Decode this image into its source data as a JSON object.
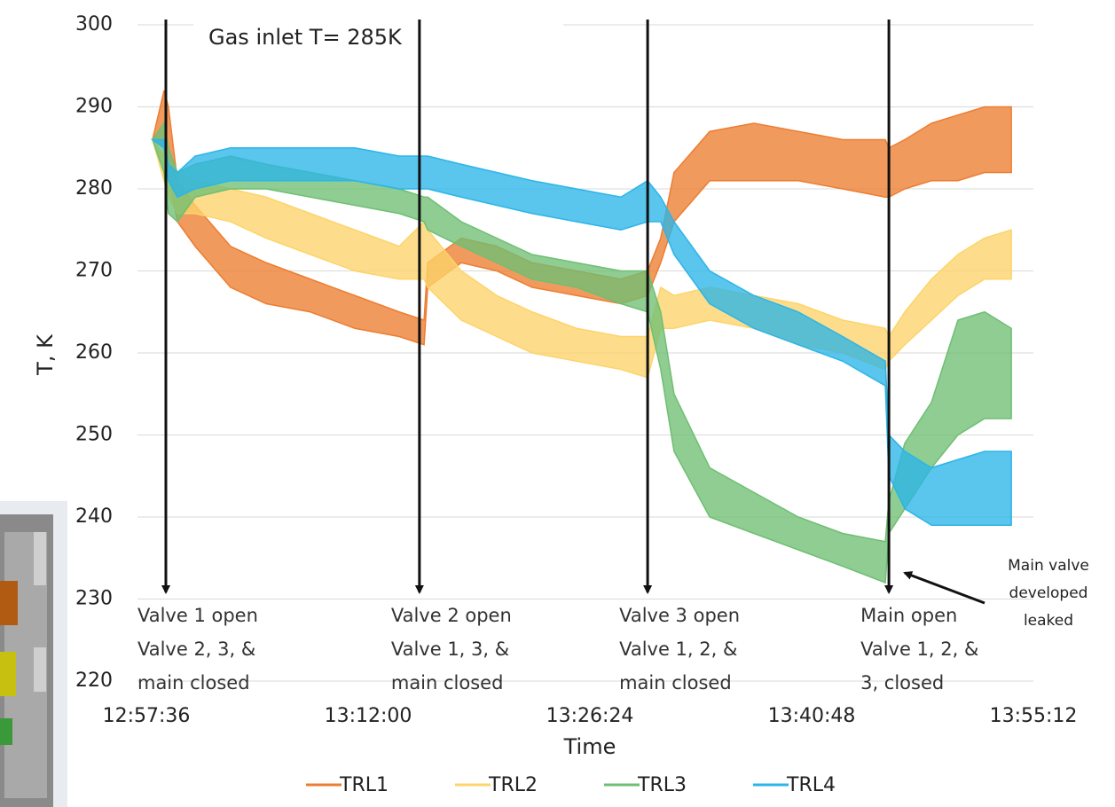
{
  "chart_data": {
    "type": "band",
    "inlet_note": "Gas inlet T= 285K",
    "y_label": "T, K",
    "x_label": "Time",
    "x": [
      "12:58:00",
      "12:58:45",
      "12:59:02",
      "12:59:37",
      "13:00:46",
      "13:03:04",
      "13:05:23",
      "13:08:15",
      "13:11:08",
      "13:14:01",
      "13:15:38",
      "13:15:52",
      "13:18:03",
      "13:20:21",
      "13:22:39",
      "13:25:32",
      "13:28:25",
      "13:30:09",
      "13:31:00",
      "13:31:52",
      "13:34:11",
      "13:37:03",
      "13:39:56",
      "13:42:49",
      "13:45:35",
      "13:45:49",
      "13:46:51",
      "13:48:35",
      "13:50:18",
      "13:52:02",
      "13:53:46"
    ],
    "series": [
      {
        "name": "TRL1",
        "color": "#ed7d31",
        "low": [
          286,
          285,
          282,
          276,
          273,
          268,
          266,
          265,
          263,
          262,
          261,
          268,
          271,
          270,
          268,
          267,
          266,
          267,
          271,
          276,
          281,
          281,
          281,
          280,
          279,
          279,
          280,
          281,
          281,
          282,
          282
        ],
        "high": [
          286,
          292,
          290,
          281,
          278,
          273,
          271,
          269,
          267,
          265,
          264,
          271,
          274,
          273,
          271,
          270,
          269,
          270,
          274,
          282,
          287,
          288,
          287,
          286,
          286,
          285,
          286,
          288,
          289,
          290,
          290
        ]
      },
      {
        "name": "TRL2",
        "color": "#fdd46a",
        "low": [
          286,
          281,
          279,
          277,
          277,
          276,
          274,
          272,
          270,
          269,
          269,
          268,
          264,
          262,
          260,
          259,
          258,
          257,
          263,
          263,
          264,
          263,
          261,
          260,
          258,
          259,
          261,
          264,
          267,
          269,
          269
        ],
        "high": [
          286,
          284,
          283,
          282,
          281,
          280,
          279,
          277,
          275,
          273,
          276,
          275,
          270,
          267,
          265,
          263,
          262,
          262,
          268,
          267,
          268,
          267,
          266,
          264,
          263,
          262,
          265,
          269,
          272,
          274,
          275
        ]
      },
      {
        "name": "TRL3",
        "color": "#6fbf73",
        "low": [
          286,
          282,
          277,
          276,
          279,
          280,
          280,
          279,
          278,
          277,
          276,
          275,
          273,
          271,
          269,
          268,
          266,
          265,
          258,
          248,
          240,
          238,
          236,
          234,
          232,
          238,
          241,
          246,
          250,
          252,
          252
        ],
        "high": [
          286,
          288,
          285,
          282,
          283,
          284,
          283,
          282,
          281,
          280,
          279,
          279,
          276,
          274,
          272,
          271,
          270,
          270,
          265,
          255,
          246,
          243,
          240,
          238,
          237,
          242,
          249,
          254,
          264,
          265,
          263
        ]
      },
      {
        "name": "TRL4",
        "color": "#2cb5e8",
        "low": [
          286,
          285,
          281,
          279,
          280,
          281,
          281,
          281,
          281,
          280,
          280,
          280,
          279,
          278,
          277,
          276,
          275,
          276,
          276,
          272,
          266,
          263,
          261,
          259,
          256,
          245,
          241,
          239,
          239,
          239,
          239
        ],
        "high": [
          286,
          286,
          283,
          282,
          284,
          285,
          285,
          285,
          285,
          284,
          284,
          284,
          283,
          282,
          281,
          280,
          279,
          281,
          279,
          276,
          270,
          267,
          265,
          262,
          259,
          250,
          248,
          246,
          247,
          248,
          248
        ]
      }
    ],
    "xlim": [
      "12:57:36",
      "13:55:12"
    ],
    "xticks": [
      "12:57:36",
      "13:12:00",
      "13:26:24",
      "13:40:48",
      "13:55:12"
    ],
    "ylim": [
      220,
      300
    ],
    "yticks": [
      220,
      230,
      240,
      250,
      260,
      270,
      280,
      290,
      300
    ],
    "grid": true,
    "legend": "bottom",
    "annotations": [
      {
        "x": "12:58:52",
        "lines": [
          "Valve 1 open",
          "Valve 2, 3, &",
          "main closed"
        ]
      },
      {
        "x": "13:15:20",
        "lines": [
          "Valve 2 open",
          "Valve 1, 3, &",
          "main closed"
        ]
      },
      {
        "x": "13:30:09",
        "lines": [
          "Valve 3 open",
          "Valve 1, 2, &",
          "main closed"
        ]
      },
      {
        "x": "13:45:49",
        "lines": [
          "Main open",
          "Valve 1, 2, &",
          "3, closed"
        ]
      }
    ],
    "note": [
      "Main valve",
      "developed",
      "leaked"
    ]
  }
}
